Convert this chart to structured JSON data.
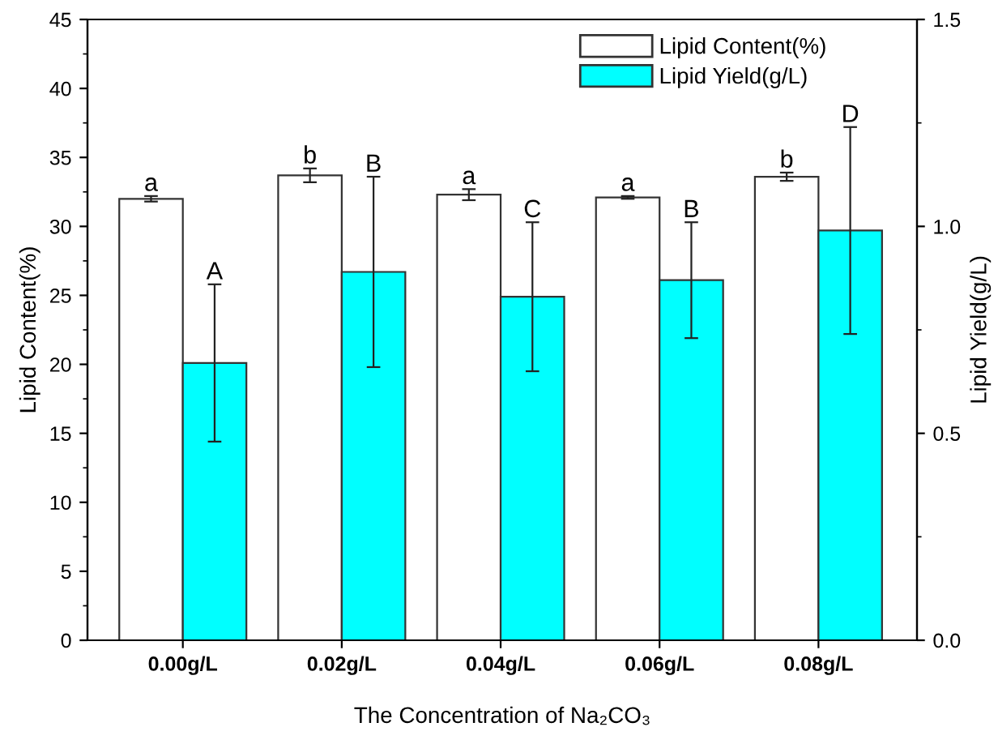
{
  "chart_data": {
    "type": "bar",
    "xlabel": "The Concentration of Na₂CO₃",
    "ylabel": "Lipid Content(%)",
    "y2label": "Lipid Yield(g/L)",
    "categories": [
      "0.00g/L",
      "0.02g/L",
      "0.04g/L",
      "0.06g/L",
      "0.08g/L"
    ],
    "series": [
      {
        "name": "Lipid Content(%)",
        "color": "#ffffff",
        "values": [
          32.0,
          33.7,
          32.3,
          32.1,
          33.6
        ],
        "errors": [
          0.2,
          0.5,
          0.4,
          0.1,
          0.3
        ]
      },
      {
        "name": "Lipid Yield(g/L)",
        "color": "#00ffff",
        "axis": "y2",
        "values": [
          0.67,
          0.89,
          0.83,
          0.87,
          0.99
        ],
        "errors": [
          0.19,
          0.23,
          0.18,
          0.14,
          0.25
        ]
      }
    ],
    "annotations": [
      "a",
      "b",
      "a",
      "a",
      "b",
      "A",
      "B",
      "C",
      "B",
      "D"
    ],
    "ylim": [
      0,
      45
    ],
    "yticks": [
      0,
      5,
      10,
      15,
      20,
      25,
      30,
      35,
      40,
      45
    ],
    "y2lim": [
      0,
      1.5
    ],
    "y2ticks": [
      {
        "value": 0,
        "label": "0.0"
      },
      {
        "value": 0.5,
        "label": "0.5"
      },
      {
        "value": 1.0,
        "label": "1.0"
      },
      {
        "value": 1.5,
        "label": "1.5"
      }
    ],
    "legend": "top right",
    "grid": false
  }
}
